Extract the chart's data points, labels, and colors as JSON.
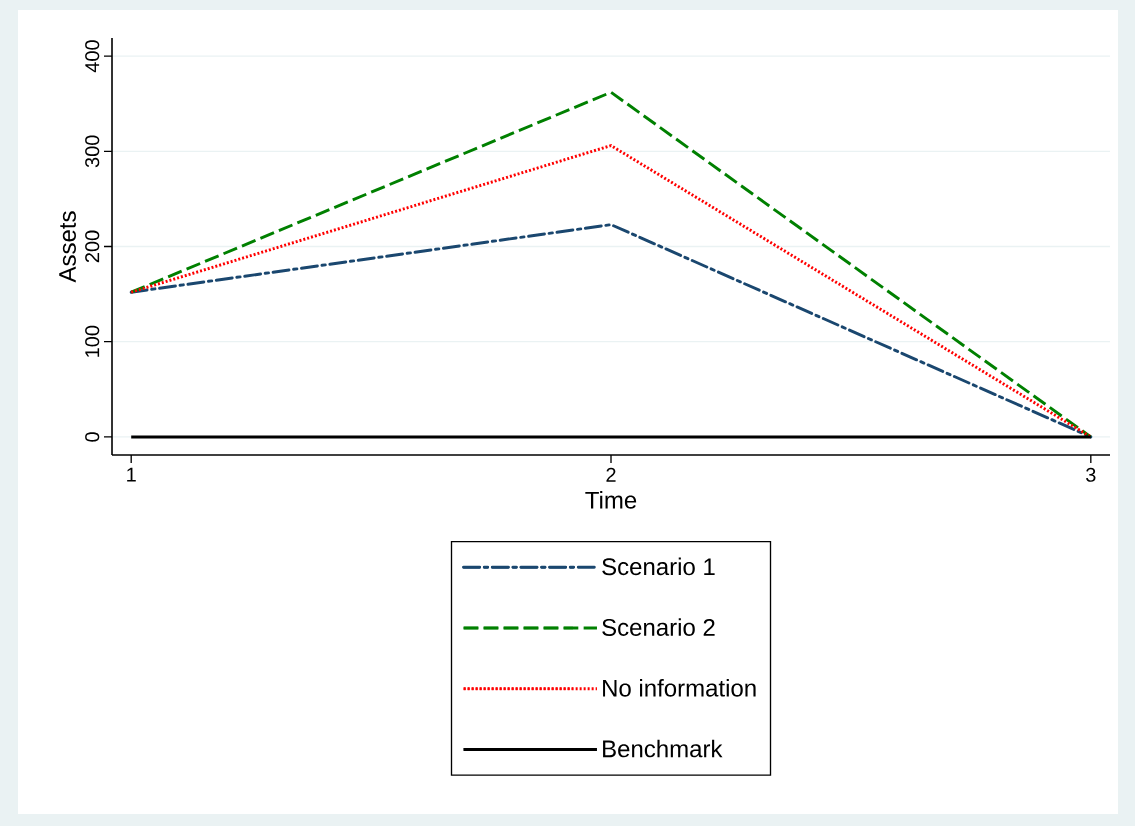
{
  "chart_data": {
    "type": "line",
    "xlabel": "Time",
    "ylabel": "Assets",
    "x": [
      1,
      2,
      3
    ],
    "xlim": [
      0.96,
      3.04
    ],
    "xticks": [
      1,
      2,
      3
    ],
    "ylim": [
      -19,
      419
    ],
    "yticks": [
      0,
      100,
      200,
      300,
      400
    ],
    "grid": "y",
    "legend": "bottom",
    "series": [
      {
        "name": "Scenario 1",
        "color": "#1a476f",
        "line_style": "dashdot",
        "values": [
          152,
          223,
          0
        ]
      },
      {
        "name": "Scenario 2",
        "color": "#008000",
        "line_style": "dashed",
        "values": [
          152,
          362,
          0
        ]
      },
      {
        "name": "No information",
        "color": "#ff0000",
        "line_style": "dotted",
        "values": [
          152,
          306,
          0
        ]
      },
      {
        "name": "Benchmark",
        "color": "#000000",
        "line_style": "solid",
        "values": [
          0,
          0,
          0
        ]
      }
    ]
  }
}
